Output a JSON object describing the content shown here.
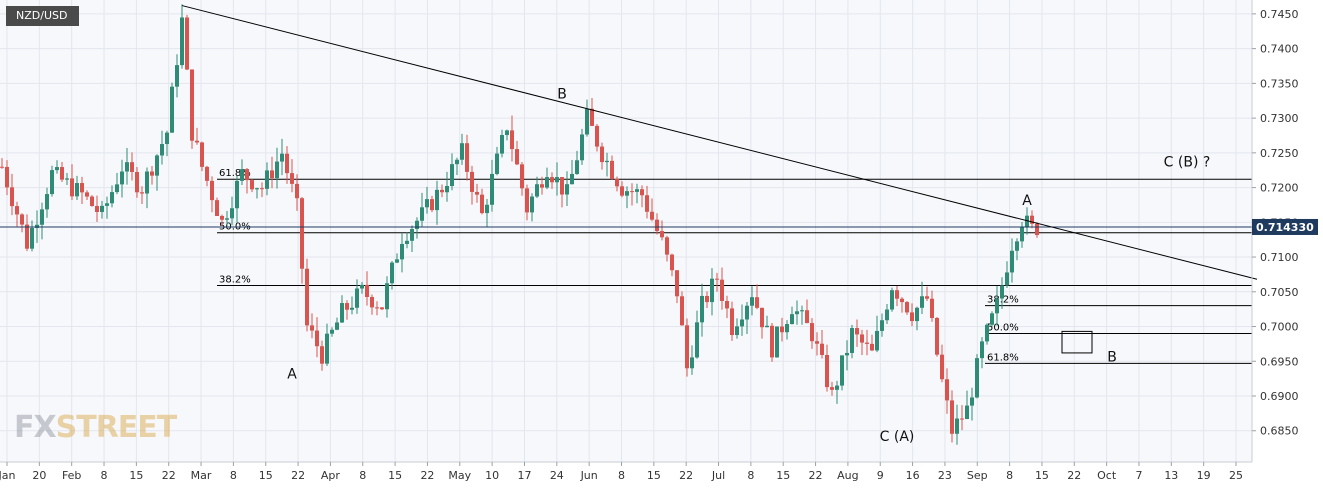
{
  "symbol": "NZD/USD",
  "watermark": {
    "prefix": "FX",
    "suffix": "STREET"
  },
  "price_tag": "0.714330",
  "colors": {
    "bull": "#2e8b76",
    "bear": "#d9534f",
    "grid": "#e3e6ee",
    "line": "#000000",
    "tag": "#1e3a5f",
    "background": "#f7f8fb"
  },
  "chart_data": {
    "type": "candlestick",
    "ylim": [
      0.6805,
      0.747
    ],
    "y_ticks": [
      "0.7450",
      "0.7400",
      "0.7350",
      "0.7300",
      "0.7250",
      "0.7200",
      "0.7150",
      "0.7100",
      "0.7050",
      "0.7000",
      "0.6950",
      "0.6900",
      "0.6850"
    ],
    "x_ticks": [
      "Jan",
      "20",
      "Feb",
      "8",
      "15",
      "22",
      "Mar",
      "8",
      "15",
      "22",
      "Apr",
      "8",
      "15",
      "22",
      "May",
      "10",
      "17",
      "24",
      "Jun",
      "8",
      "15",
      "22",
      "Jul",
      "8",
      "15",
      "22",
      "Aug",
      "9",
      "16",
      "23",
      "Sep",
      "8",
      "15",
      "22",
      "Oct",
      "7",
      "13",
      "19",
      "25"
    ],
    "anchors": [
      {
        "i": 0,
        "p": 0.723
      },
      {
        "i": 5,
        "p": 0.712
      },
      {
        "i": 10,
        "p": 0.722
      },
      {
        "i": 16,
        "p": 0.719
      },
      {
        "i": 20,
        "p": 0.716
      },
      {
        "i": 24,
        "p": 0.723
      },
      {
        "i": 28,
        "p": 0.72
      },
      {
        "i": 33,
        "p": 0.728
      },
      {
        "i": 36,
        "p": 0.744
      },
      {
        "i": 38,
        "p": 0.728
      },
      {
        "i": 40,
        "p": 0.723
      },
      {
        "i": 44,
        "p": 0.715
      },
      {
        "i": 48,
        "p": 0.722
      },
      {
        "i": 52,
        "p": 0.72
      },
      {
        "i": 56,
        "p": 0.725
      },
      {
        "i": 59,
        "p": 0.717
      },
      {
        "i": 61,
        "p": 0.7
      },
      {
        "i": 64,
        "p": 0.696
      },
      {
        "i": 68,
        "p": 0.702
      },
      {
        "i": 72,
        "p": 0.705
      },
      {
        "i": 76,
        "p": 0.703
      },
      {
        "i": 80,
        "p": 0.713
      },
      {
        "i": 84,
        "p": 0.716
      },
      {
        "i": 88,
        "p": 0.72
      },
      {
        "i": 92,
        "p": 0.725
      },
      {
        "i": 96,
        "p": 0.716
      },
      {
        "i": 101,
        "p": 0.729
      },
      {
        "i": 105,
        "p": 0.717
      },
      {
        "i": 109,
        "p": 0.723
      },
      {
        "i": 113,
        "p": 0.719
      },
      {
        "i": 117,
        "p": 0.73
      },
      {
        "i": 120,
        "p": 0.725
      },
      {
        "i": 124,
        "p": 0.72
      },
      {
        "i": 128,
        "p": 0.719
      },
      {
        "i": 132,
        "p": 0.712
      },
      {
        "i": 135,
        "p": 0.705
      },
      {
        "i": 137,
        "p": 0.694
      },
      {
        "i": 140,
        "p": 0.703
      },
      {
        "i": 143,
        "p": 0.707
      },
      {
        "i": 146,
        "p": 0.7
      },
      {
        "i": 150,
        "p": 0.705
      },
      {
        "i": 154,
        "p": 0.697
      },
      {
        "i": 158,
        "p": 0.703
      },
      {
        "i": 162,
        "p": 0.699
      },
      {
        "i": 166,
        "p": 0.69
      },
      {
        "i": 170,
        "p": 0.699
      },
      {
        "i": 174,
        "p": 0.696
      },
      {
        "i": 178,
        "p": 0.706
      },
      {
        "i": 182,
        "p": 0.702
      },
      {
        "i": 185,
        "p": 0.704
      },
      {
        "i": 188,
        "p": 0.692
      },
      {
        "i": 190,
        "p": 0.685
      },
      {
        "i": 193,
        "p": 0.688
      },
      {
        "i": 196,
        "p": 0.697
      },
      {
        "i": 199,
        "p": 0.703
      },
      {
        "i": 202,
        "p": 0.712
      },
      {
        "i": 204,
        "p": 0.7155
      },
      {
        "i": 206,
        "p": 0.714
      },
      {
        "i": 207,
        "p": 0.7143
      }
    ],
    "fib_levels": [
      {
        "label": "61.8%",
        "price": 0.7212
      },
      {
        "label": "50.0%",
        "price": 0.7135
      },
      {
        "label": "38.2%",
        "price": 0.7059
      },
      {
        "label": "38.2%",
        "price": 0.703
      },
      {
        "label": "50.0%",
        "price": 0.699
      },
      {
        "label": "61.8%",
        "price": 0.6947
      }
    ],
    "current_price": 0.71433,
    "current_price_label": "0.714330",
    "trendline": [
      {
        "i": 36,
        "p": 0.7462
      },
      {
        "i": 251,
        "p": 0.7068
      }
    ],
    "annotations": [
      {
        "text": "B",
        "i": 112,
        "p": 0.7328
      },
      {
        "text": "A",
        "i": 58,
        "p": 0.6925
      },
      {
        "text": "A",
        "i": 205,
        "p": 0.7175
      },
      {
        "text": "C (A)",
        "i": 179,
        "p": 0.6835
      },
      {
        "text": "C (B) ?",
        "i": 237,
        "p": 0.723
      },
      {
        "text": "B",
        "i": 222,
        "p": 0.695
      }
    ],
    "target_box": {
      "i_start": 212,
      "i_end": 218,
      "p_top": 0.6993,
      "p_bottom": 0.6962
    },
    "grid": true
  }
}
